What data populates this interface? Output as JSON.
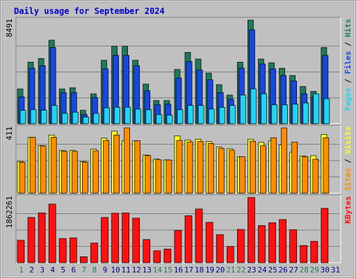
{
  "chart_data": {
    "type": "bar",
    "title": "Daily usage for September 2024",
    "x": [
      1,
      2,
      3,
      4,
      5,
      6,
      7,
      8,
      9,
      10,
      11,
      12,
      13,
      14,
      15,
      16,
      17,
      18,
      19,
      20,
      21,
      22,
      23,
      24,
      25,
      26,
      27,
      28,
      29,
      30,
      31
    ],
    "weekend_days": [
      1,
      7,
      8,
      14,
      15,
      21,
      22,
      28,
      29
    ],
    "panels": [
      {
        "name": "hits-files-pages",
        "y_tick_label": "8491",
        "ylim": [
          0,
          8491
        ],
        "series": [
          {
            "name": "Hits",
            "color": "#1f7a5c",
            "values": [
              2850,
              5050,
              5350,
              6850,
              2850,
              2950,
              1100,
              2450,
              5200,
              6350,
              6350,
              5200,
              3250,
              1900,
              1900,
              4450,
              5850,
              5300,
              4150,
              3200,
              2350,
              5050,
              8491,
              5300,
              5000,
              4550,
              3950,
              3050,
              2650,
              6250,
              0
            ]
          },
          {
            "name": "Files",
            "color": "#1648e0",
            "values": [
              2200,
              4550,
              4750,
              6250,
              2550,
              2550,
              750,
              2150,
              4500,
              5600,
              5600,
              4750,
              2700,
              1550,
              1600,
              3750,
              5100,
              4400,
              3600,
              2550,
              2000,
              4550,
              7700,
              4900,
              4500,
              3950,
              3500,
              2450,
              2200,
              5600,
              0
            ]
          },
          {
            "name": "Pages",
            "color": "#22d4f4",
            "values": [
              1100,
              1150,
              1100,
              1500,
              850,
              950,
              550,
              850,
              1300,
              1350,
              1350,
              1200,
              1150,
              750,
              700,
              1150,
              1500,
              1500,
              1200,
              1350,
              1500,
              2350,
              2850,
              2450,
              1550,
              1550,
              1600,
              1700,
              2450,
              2050,
              0
            ]
          }
        ],
        "axis_labels": [
          "Pages",
          "Files",
          "Hits"
        ]
      },
      {
        "name": "visits-sites",
        "y_tick_label": "411",
        "ylim": [
          0,
          411
        ],
        "series": [
          {
            "name": "Visits",
            "color": "#ffff22",
            "values": [
              200,
              352,
              300,
              366,
              270,
              270,
              200,
              277,
              347,
              390,
              330,
              330,
              240,
              215,
              210,
              361,
              335,
              340,
              325,
              290,
              280,
              230,
              340,
              320,
              330,
              305,
              258,
              235,
              236,
              370,
              0
            ]
          },
          {
            "name": "Sites",
            "color": "#ff8c00",
            "values": [
              195,
              352,
              298,
              352,
              265,
              263,
              196,
              267,
              332,
              366,
              411,
              330,
              237,
              211,
              209,
              332,
              323,
              325,
              313,
              282,
              271,
              230,
              327,
              299,
              349,
              411,
              322,
              230,
              214,
              349,
              0
            ]
          }
        ],
        "axis_labels": [
          "Sites",
          "Visits"
        ]
      },
      {
        "name": "kbytes",
        "y_tick_label": "1862261",
        "ylim": [
          0,
          1862261
        ],
        "series": [
          {
            "name": "KBytes",
            "color": "#ff1010",
            "values": [
              640000,
              1290000,
              1420000,
              1670000,
              690000,
              710000,
              170000,
              560000,
              1290000,
              1410000,
              1420000,
              1270000,
              660000,
              340000,
              390000,
              920000,
              1340000,
              1530000,
              1150000,
              800000,
              460000,
              950000,
              1862261,
              1060000,
              1140000,
              1230000,
              940000,
              490000,
              610000,
              1550000,
              0
            ]
          }
        ],
        "axis_labels": [
          "KBytes"
        ]
      }
    ],
    "colors": {
      "background": "#c0c0c0",
      "title": "#0000cc",
      "gridline": "#808080",
      "weekday_label": "#00008b",
      "weekend_label": "#1f7a5c"
    }
  }
}
